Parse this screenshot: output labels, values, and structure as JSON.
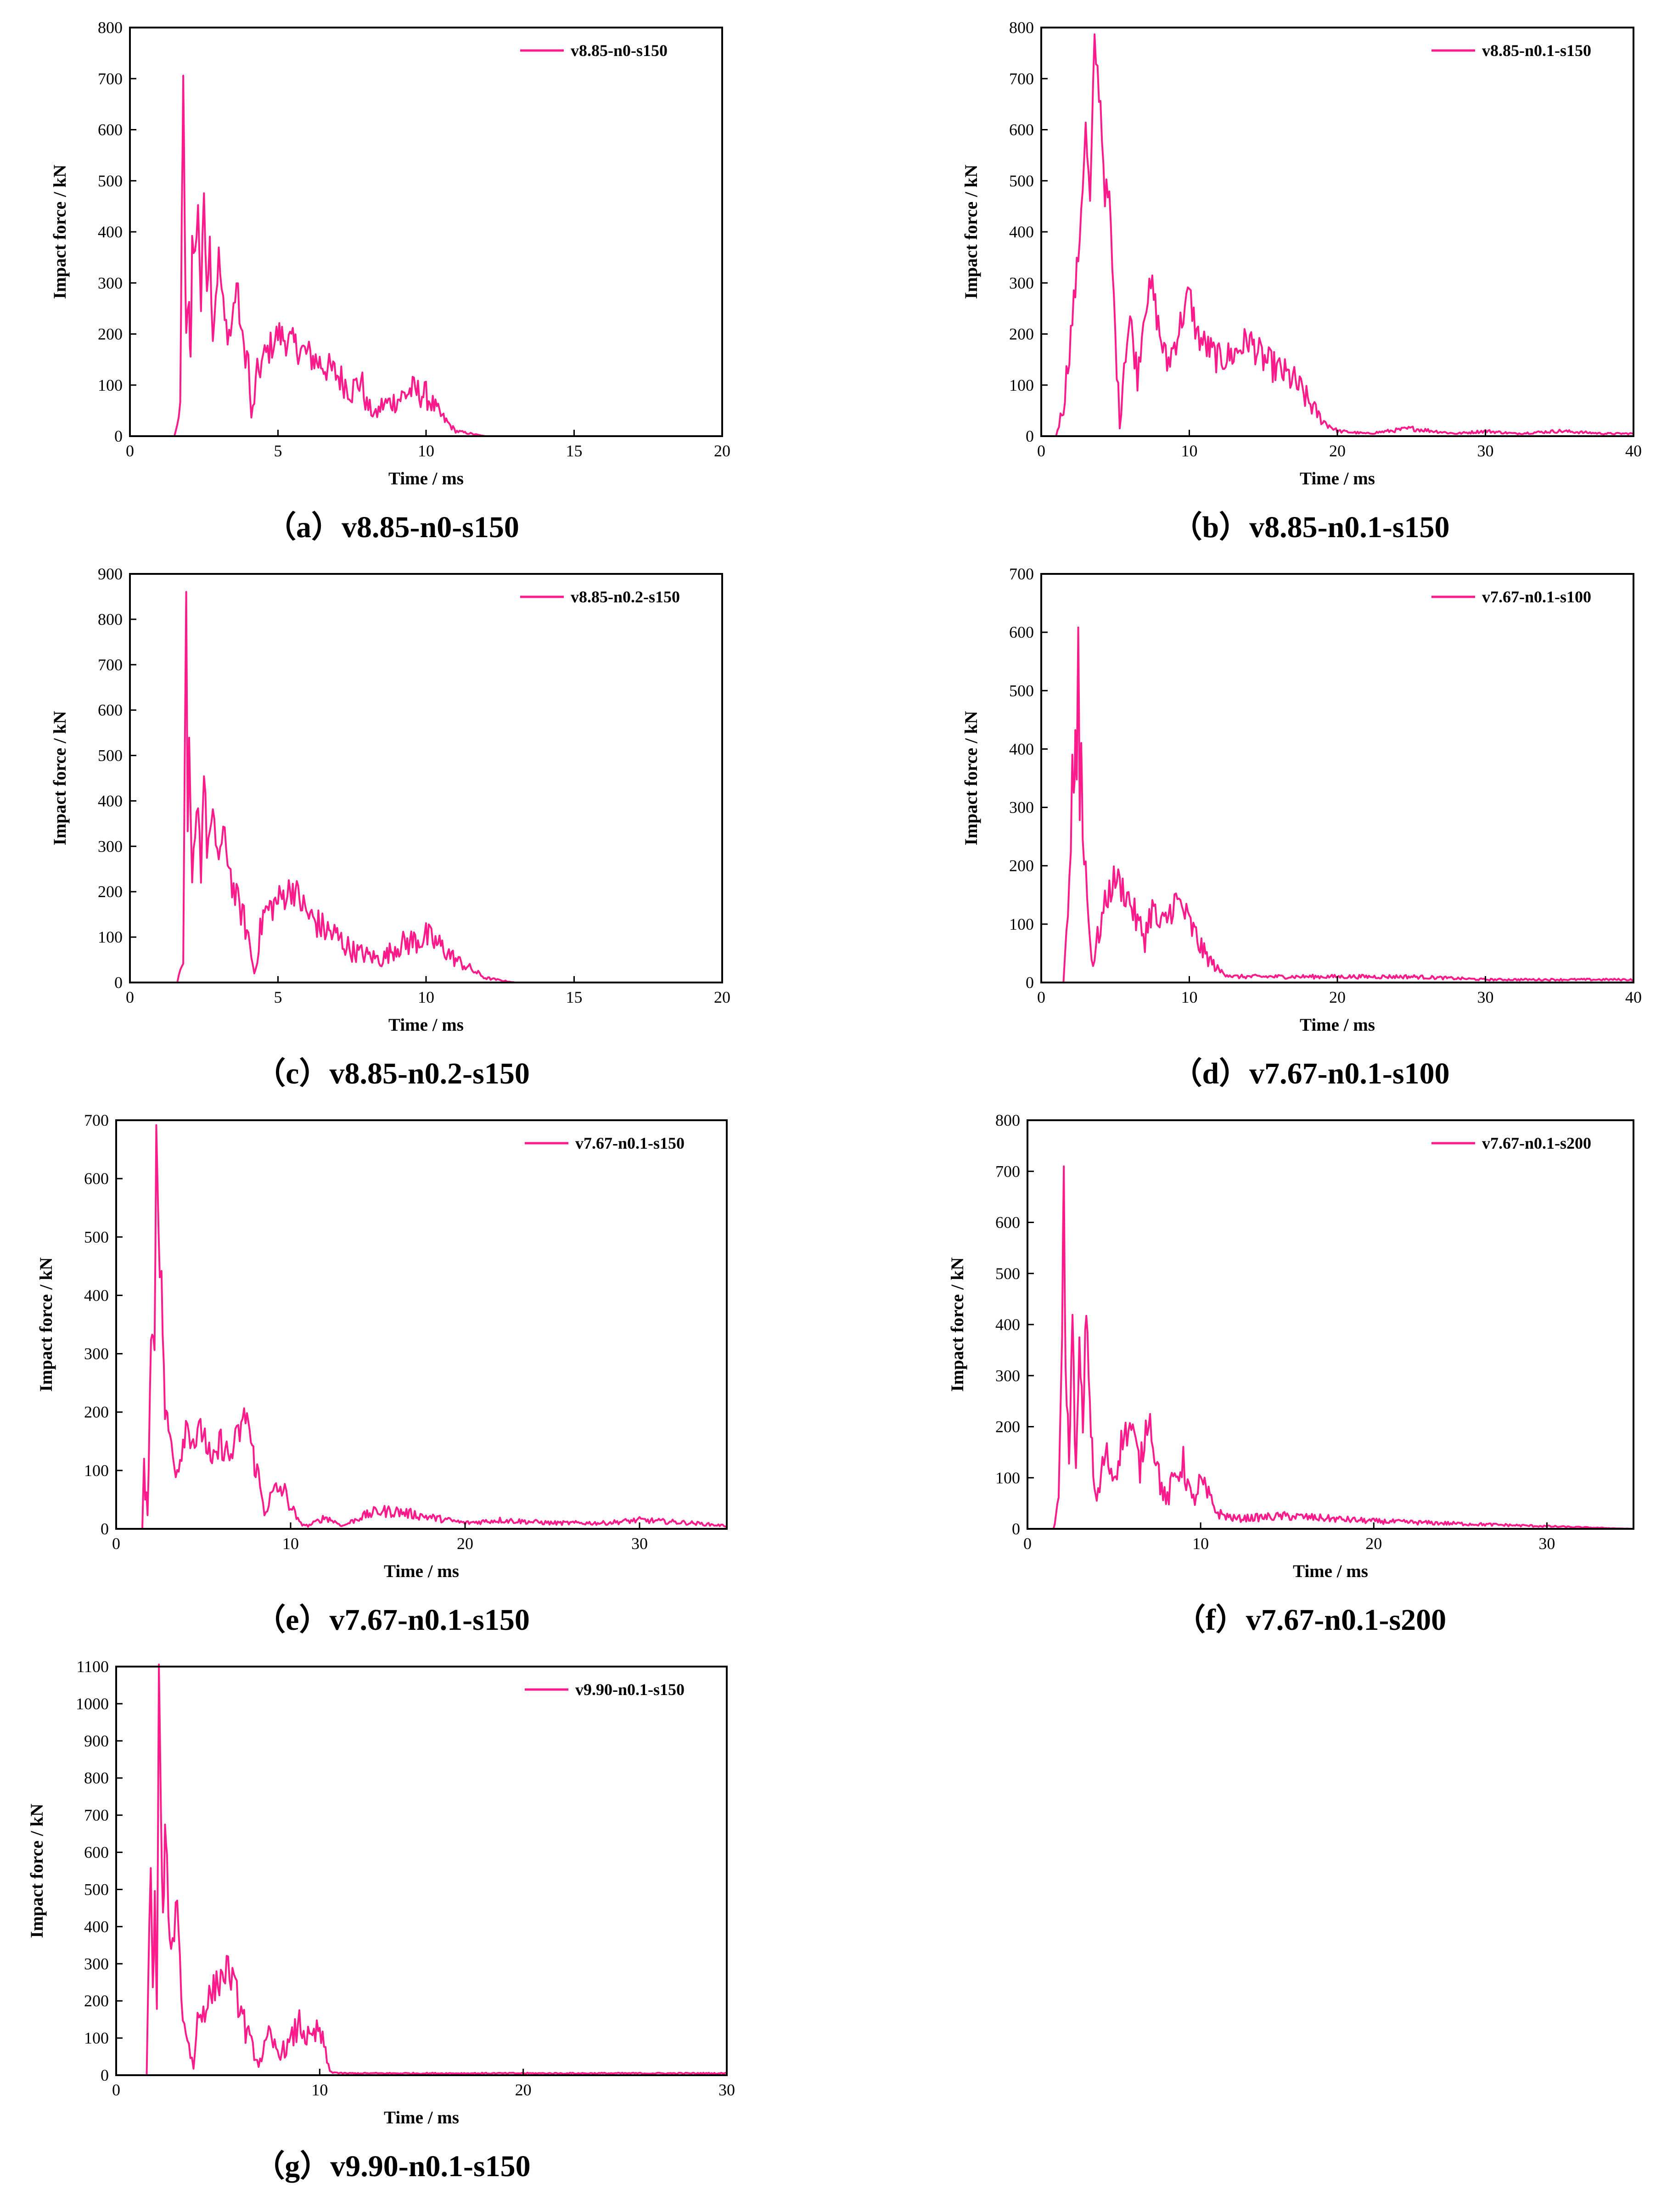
{
  "colors": {
    "series": "#ff1a8c",
    "axis": "#000000"
  },
  "chart_data": [
    {
      "type": "line",
      "caption": "（a）v8.85-n0-s150",
      "xlabel": "Time / ms",
      "ylabel": "Impact force / kN",
      "xlim": [
        0,
        20
      ],
      "ylim": [
        0,
        800
      ],
      "xticks": [
        0,
        5,
        10,
        15,
        20
      ],
      "yticks": [
        0,
        100,
        200,
        300,
        400,
        500,
        600,
        700,
        800
      ],
      "legend_position": "top-right",
      "grid": false,
      "series": [
        {
          "name": "v8.85-n0-s150",
          "x": [
            0,
            1.5,
            1.7,
            1.75,
            1.8,
            1.85,
            1.9,
            2.0,
            2.05,
            2.1,
            2.2,
            2.3,
            2.4,
            2.5,
            2.6,
            2.7,
            2.8,
            2.9,
            3.0,
            3.2,
            3.4,
            3.6,
            3.8,
            4.0,
            4.1,
            4.3,
            4.5,
            4.8,
            5.0,
            5.5,
            6.0,
            6.5,
            7.0,
            7.5,
            7.8,
            8.0,
            8.3,
            8.5,
            9.0,
            9.5,
            10.0,
            10.5,
            11.0,
            11.5,
            12.0,
            15,
            20
          ],
          "y": [
            0,
            0,
            50,
            420,
            710,
            400,
            200,
            250,
            150,
            380,
            350,
            460,
            250,
            480,
            300,
            380,
            200,
            280,
            350,
            220,
            200,
            300,
            180,
            150,
            30,
            120,
            150,
            180,
            200,
            180,
            160,
            140,
            120,
            90,
            110,
            60,
            40,
            60,
            70,
            90,
            80,
            40,
            10,
            5,
            0,
            0,
            0
          ]
        }
      ]
    },
    {
      "type": "line",
      "caption": "（b）v8.85-n0.1-s150",
      "xlabel": "Time / ms",
      "ylabel": "Impact force / kN",
      "xlim": [
        0,
        40
      ],
      "ylim": [
        0,
        800
      ],
      "xticks": [
        0,
        10,
        20,
        30,
        40
      ],
      "yticks": [
        0,
        100,
        200,
        300,
        400,
        500,
        600,
        700,
        800
      ],
      "legend_position": "top-right",
      "grid": false,
      "series": [
        {
          "name": "v8.85-n0.1-s150",
          "x": [
            0,
            1.0,
            1.5,
            2.0,
            2.5,
            3.0,
            3.3,
            3.6,
            4.0,
            4.3,
            4.6,
            5.0,
            5.3,
            5.6,
            6.0,
            6.5,
            7.0,
            7.5,
            8.0,
            8.5,
            9.0,
            9.5,
            10.0,
            10.5,
            11.0,
            12.0,
            13.0,
            14.0,
            15.0,
            16.0,
            17.0,
            18.0,
            19.0,
            20.0,
            22,
            25,
            28,
            30,
            32,
            35,
            38,
            40
          ],
          "y": [
            0,
            0,
            60,
            200,
            350,
            600,
            450,
            770,
            650,
            480,
            460,
            200,
            20,
            150,
            230,
            120,
            260,
            290,
            200,
            140,
            180,
            230,
            280,
            200,
            180,
            150,
            160,
            190,
            150,
            130,
            110,
            70,
            30,
            10,
            5,
            15,
            5,
            10,
            5,
            10,
            5,
            5
          ]
        }
      ]
    },
    {
      "type": "line",
      "caption": "（c）v8.85-n0.2-s150",
      "xlabel": "Time / ms",
      "ylabel": "Impact force / kN",
      "xlim": [
        0,
        20
      ],
      "ylim": [
        0,
        900
      ],
      "xticks": [
        0,
        5,
        10,
        15,
        20
      ],
      "yticks": [
        0,
        100,
        200,
        300,
        400,
        500,
        600,
        700,
        800,
        900
      ],
      "legend_position": "top-right",
      "grid": false,
      "series": [
        {
          "name": "v8.85-n0.2-s150",
          "x": [
            0,
            1.6,
            1.8,
            1.9,
            1.95,
            2.0,
            2.1,
            2.2,
            2.3,
            2.4,
            2.5,
            2.6,
            2.8,
            3.0,
            3.2,
            3.5,
            3.8,
            4.0,
            4.2,
            4.5,
            5.0,
            5.5,
            6.0,
            6.5,
            7.0,
            7.5,
            8.0,
            8.5,
            9.0,
            9.5,
            10.0,
            10.5,
            11.0,
            12.0,
            13.0,
            20
          ],
          "y": [
            0,
            0,
            50,
            840,
            300,
            510,
            200,
            350,
            400,
            250,
            470,
            300,
            350,
            280,
            320,
            200,
            150,
            100,
            20,
            150,
            180,
            210,
            150,
            120,
            100,
            70,
            60,
            50,
            80,
            90,
            100,
            80,
            50,
            10,
            0,
            0
          ]
        }
      ]
    },
    {
      "type": "line",
      "caption": "（d）v7.67-n0.1-s100",
      "xlabel": "Time / ms",
      "ylabel": "Impact force / kN",
      "xlim": [
        0,
        40
      ],
      "ylim": [
        0,
        700
      ],
      "xticks": [
        0,
        10,
        20,
        30,
        40
      ],
      "yticks": [
        0,
        100,
        200,
        300,
        400,
        500,
        600,
        700
      ],
      "legend_position": "top-right",
      "grid": false,
      "series": [
        {
          "name": "v7.67-n0.1-s100",
          "x": [
            0,
            1.5,
            1.8,
            2.0,
            2.1,
            2.2,
            2.3,
            2.4,
            2.5,
            2.6,
            2.7,
            2.8,
            3.0,
            3.2,
            3.5,
            4.0,
            4.5,
            5.0,
            5.5,
            6.0,
            6.5,
            7.0,
            7.5,
            8.0,
            8.5,
            9.0,
            9.5,
            10.0,
            11.0,
            12.0,
            13.0,
            15,
            20,
            25,
            30,
            35,
            40
          ],
          "y": [
            0,
            0,
            100,
            210,
            400,
            300,
            430,
            350,
            620,
            300,
            420,
            250,
            200,
            100,
            30,
            100,
            150,
            180,
            160,
            140,
            100,
            80,
            130,
            90,
            110,
            140,
            130,
            100,
            50,
            20,
            10,
            10,
            10,
            10,
            5,
            5,
            5
          ]
        }
      ]
    },
    {
      "type": "line",
      "caption": "（e）v7.67-n0.1-s150",
      "xlabel": "Time / ms",
      "ylabel": "Impact force / kN",
      "xlim": [
        0,
        35
      ],
      "ylim": [
        0,
        700
      ],
      "xticks": [
        0,
        10,
        20,
        30
      ],
      "yticks": [
        0,
        100,
        200,
        300,
        400,
        500,
        600,
        700
      ],
      "legend_position": "top-right",
      "grid": false,
      "series": [
        {
          "name": "v7.67-n0.1-s150",
          "x": [
            0,
            1.5,
            1.6,
            1.8,
            2.0,
            2.2,
            2.3,
            2.5,
            2.6,
            2.8,
            3.0,
            3.5,
            4.0,
            4.5,
            5.0,
            5.5,
            6.0,
            6.5,
            7.0,
            7.5,
            7.8,
            8.0,
            8.5,
            9.0,
            9.5,
            10.0,
            10.5,
            11.0,
            12,
            13,
            14,
            15,
            16,
            18,
            20,
            22,
            25,
            28,
            30,
            33,
            35
          ],
          "y": [
            0,
            0,
            100,
            20,
            350,
            300,
            690,
            450,
            420,
            200,
            170,
            100,
            180,
            150,
            170,
            100,
            150,
            120,
            160,
            200,
            130,
            110,
            30,
            60,
            70,
            40,
            10,
            5,
            20,
            5,
            20,
            30,
            30,
            20,
            10,
            15,
            10,
            10,
            15,
            10,
            5
          ]
        }
      ]
    },
    {
      "type": "line",
      "caption": "（f）v7.67-n0.1-s200",
      "xlabel": "Time / ms",
      "ylabel": "Impact force / kN",
      "xlim": [
        0,
        35
      ],
      "ylim": [
        0,
        800
      ],
      "xticks": [
        0,
        10,
        20,
        30
      ],
      "yticks": [
        0,
        100,
        200,
        300,
        400,
        500,
        600,
        700,
        800
      ],
      "legend_position": "top-right",
      "grid": false,
      "series": [
        {
          "name": "v7.67-n0.1-s200",
          "x": [
            0,
            1.5,
            1.8,
            2.0,
            2.1,
            2.2,
            2.4,
            2.6,
            2.8,
            3.0,
            3.2,
            3.4,
            3.6,
            3.8,
            4.0,
            4.5,
            5.0,
            5.5,
            6.0,
            6.5,
            7.0,
            7.5,
            8.0,
            8.5,
            9.0,
            9.5,
            10.0,
            11.0,
            12.0,
            15,
            20,
            25,
            30,
            35
          ],
          "y": [
            0,
            0,
            50,
            400,
            700,
            300,
            150,
            400,
            100,
            350,
            200,
            440,
            250,
            100,
            50,
            150,
            100,
            180,
            200,
            120,
            230,
            120,
            50,
            100,
            130,
            50,
            90,
            30,
            20,
            25,
            15,
            10,
            5,
            0
          ]
        }
      ]
    },
    {
      "type": "line",
      "caption": "（g）v9.90-n0.1-s150",
      "xlabel": "Time / ms",
      "ylabel": "Impact force / kN",
      "xlim": [
        0,
        30
      ],
      "ylim": [
        0,
        1100
      ],
      "xticks": [
        0,
        10,
        20,
        30
      ],
      "yticks": [
        0,
        100,
        200,
        300,
        400,
        500,
        600,
        700,
        800,
        900,
        1000,
        1100
      ],
      "legend_position": "top-right",
      "grid": false,
      "series": [
        {
          "name": "v9.90-n0.1-s150",
          "x": [
            0,
            1.5,
            1.7,
            1.8,
            1.9,
            2.0,
            2.1,
            2.2,
            2.3,
            2.4,
            2.5,
            2.7,
            3.0,
            3.2,
            3.5,
            3.8,
            4.0,
            4.5,
            5.0,
            5.5,
            6.0,
            6.5,
            7.0,
            7.5,
            8.0,
            8.5,
            9.0,
            9.5,
            10.0,
            10.5,
            11,
            15,
            20,
            25,
            30
          ],
          "y": [
            0,
            0,
            600,
            200,
            500,
            150,
            1090,
            700,
            400,
            650,
            550,
            300,
            500,
            200,
            100,
            20,
            150,
            200,
            250,
            290,
            200,
            100,
            30,
            100,
            60,
            80,
            140,
            90,
            120,
            10,
            5,
            5,
            5,
            5,
            5
          ]
        }
      ]
    }
  ]
}
